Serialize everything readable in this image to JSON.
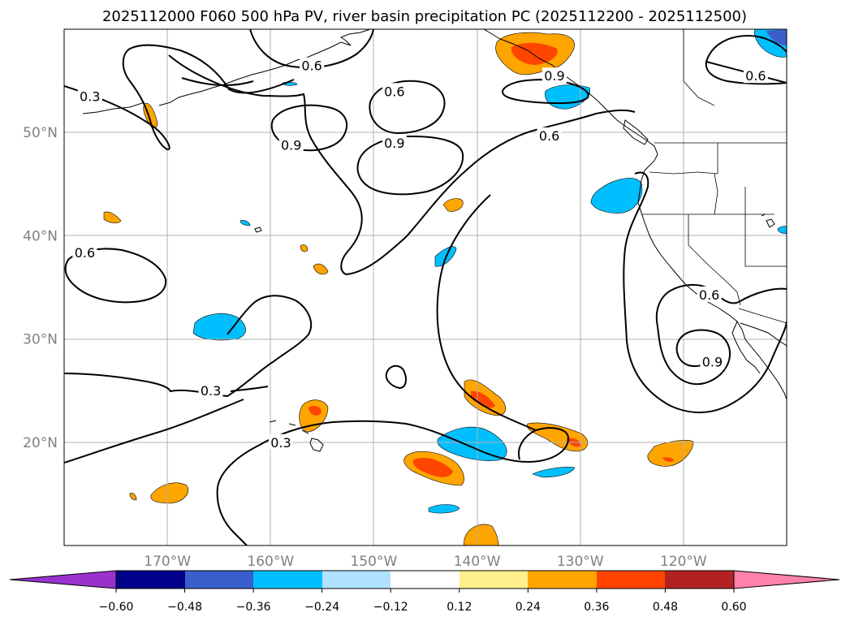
{
  "chart_data": {
    "type": "contour-map",
    "title": "2025112000 F060 500 hPa PV, river basin precipitation PC (2025112200 - 2025112500)",
    "map_extent": {
      "lon": [
        -180,
        -110
      ],
      "lat": [
        10,
        60
      ]
    },
    "lat_ticks": [
      {
        "lat": 50,
        "label": "50°N"
      },
      {
        "lat": 40,
        "label": "40°N"
      },
      {
        "lat": 30,
        "label": "30°N"
      },
      {
        "lat": 20,
        "label": "20°N"
      }
    ],
    "lon_ticks": [
      {
        "lon": -170,
        "label": "170°W"
      },
      {
        "lon": -160,
        "label": "160°W"
      },
      {
        "lon": -150,
        "label": "150°W"
      },
      {
        "lon": -140,
        "label": "140°W"
      },
      {
        "lon": -130,
        "label": "130°W"
      },
      {
        "lon": -120,
        "label": "120°W"
      }
    ],
    "grid": true,
    "pv_contour_levels": [
      0.3,
      0.6,
      0.9
    ],
    "contour_labels": [
      {
        "text": "0.3",
        "lon": -177.5,
        "lat": 53.5
      },
      {
        "text": "0.6",
        "lon": -156,
        "lat": 56.5
      },
      {
        "text": "0.6",
        "lon": -148,
        "lat": 54
      },
      {
        "text": "0.9",
        "lon": -158,
        "lat": 48.8
      },
      {
        "text": "0.9",
        "lon": -148,
        "lat": 49
      },
      {
        "text": "0.6",
        "lon": -133,
        "lat": 49.7
      },
      {
        "text": "0.9",
        "lon": -132.5,
        "lat": 55.5
      },
      {
        "text": "0.6",
        "lon": -113,
        "lat": 55.5
      },
      {
        "text": "0.6",
        "lon": -178,
        "lat": 38.4
      },
      {
        "text": "0.6",
        "lon": -117.5,
        "lat": 34.3
      },
      {
        "text": "0.9",
        "lon": -117.2,
        "lat": 27.8
      },
      {
        "text": "0.3",
        "lon": -165.8,
        "lat": 25
      },
      {
        "text": "0.3",
        "lon": -159,
        "lat": 20
      }
    ],
    "colorbar": {
      "extend": "both",
      "ticks": [
        "−0.60",
        "−0.48",
        "−0.36",
        "−0.24",
        "−0.12",
        "0.12",
        "0.24",
        "0.36",
        "0.48",
        "0.60"
      ],
      "colors": {
        "lt_-0.60": "#9932cc",
        "-0.60_-0.48": "#00008b",
        "-0.48_-0.36": "#3a5fcd",
        "-0.36_-0.24": "#00bfff",
        "-0.24_-0.12": "#b0e2ff",
        "-0.12_0.12": "#ffffff",
        "0.12_0.24": "#fff08c",
        "0.24_0.36": "#ffa500",
        "0.36_0.48": "#ff4500",
        "0.48_0.60": "#b22222",
        "gt_0.60": "#ff82ab"
      }
    }
  }
}
